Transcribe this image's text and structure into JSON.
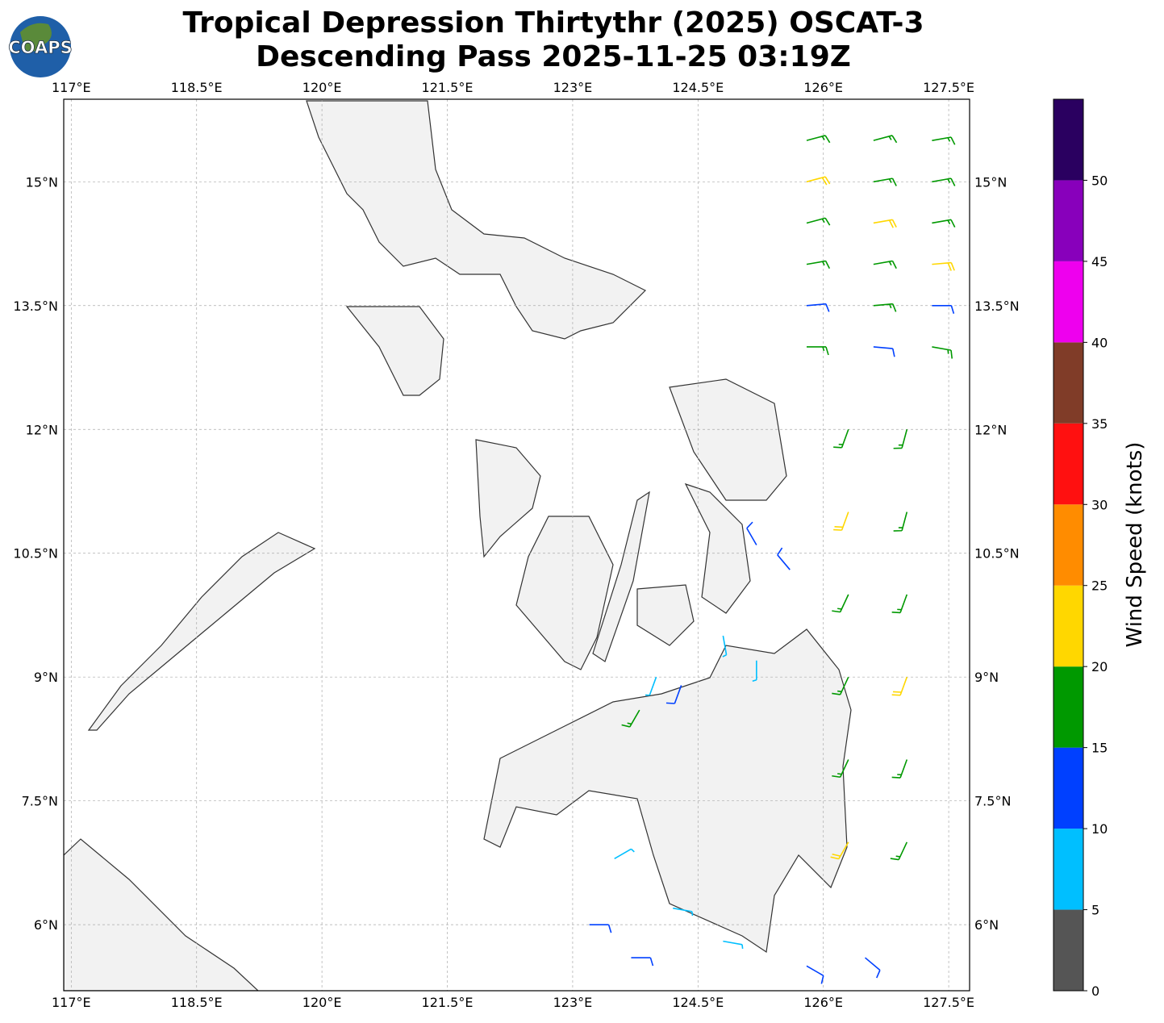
{
  "chart_data": {
    "type": "wind-barb-map",
    "title": "Tropical Depression Thirtythr (2025) OSCAT-3",
    "subtitle": "Descending Pass 2025-11-25 03:19Z",
    "logo_text": "COAPS",
    "xlim": [
      116.91,
      127.75
    ],
    "ylim": [
      5.2,
      16.0
    ],
    "xticks": [
      {
        "value": 117,
        "label": "117°E"
      },
      {
        "value": 118.5,
        "label": "118.5°E"
      },
      {
        "value": 120,
        "label": "120°E"
      },
      {
        "value": 121.5,
        "label": "121.5°E"
      },
      {
        "value": 123,
        "label": "123°E"
      },
      {
        "value": 124.5,
        "label": "124.5°E"
      },
      {
        "value": 126,
        "label": "126°E"
      },
      {
        "value": 127.5,
        "label": "127.5°E"
      }
    ],
    "yticks": [
      {
        "value": 6,
        "label": "6°N"
      },
      {
        "value": 7.5,
        "label": "7.5°N"
      },
      {
        "value": 9,
        "label": "9°N"
      },
      {
        "value": 10.5,
        "label": "10.5°N"
      },
      {
        "value": 12,
        "label": "12°N"
      },
      {
        "value": 13.5,
        "label": "13.5°N"
      },
      {
        "value": 15,
        "label": "15°N"
      }
    ],
    "grid": true,
    "colorbar": {
      "label": "Wind Speed (knots)",
      "bins": [
        0,
        5,
        10,
        15,
        20,
        25,
        30,
        35,
        40,
        45,
        50,
        55
      ],
      "colors": [
        "#555555",
        "#00bfff",
        "#0040ff",
        "#009900",
        "#ffd700",
        "#ff8c00",
        "#ff1010",
        "#803c28",
        "#ee00ee",
        "#8800bb",
        "#2a0060"
      ],
      "ticks": [
        0,
        5,
        10,
        15,
        20,
        25,
        30,
        35,
        40,
        45,
        50
      ]
    },
    "barbs": {
      "lon": [
        125.8,
        126.6,
        127.3,
        125.8,
        126.6,
        127.3,
        125.8,
        126.6,
        127.3,
        125.8,
        126.6,
        127.3,
        125.8,
        126.6,
        127.3,
        125.8,
        126.6,
        127.3,
        126.3,
        127.0,
        126.3,
        127.0,
        126.3,
        127.0,
        126.3,
        127.0,
        126.3,
        127.0,
        126.3,
        127.0,
        125.2,
        125.6,
        124.8,
        125.2,
        124.0,
        123.8,
        124.3,
        123.2,
        123.7,
        124.2,
        124.8,
        123.5,
        125.8,
        126.5
      ],
      "lat": [
        15.5,
        15.5,
        15.5,
        15,
        15,
        15,
        14.5,
        14.5,
        14.5,
        14,
        14,
        14,
        13.5,
        13.5,
        13.5,
        13,
        13,
        13,
        12,
        12,
        11,
        11,
        10,
        10,
        9,
        9,
        8,
        8,
        7,
        7,
        10.6,
        10.3,
        9.5,
        9.2,
        9.0,
        8.6,
        8.9,
        6.0,
        5.6,
        6.2,
        5.8,
        6.8,
        5.5,
        5.6
      ],
      "speed": [
        17,
        16,
        18,
        21,
        17,
        19,
        16,
        22,
        18,
        17,
        19,
        21,
        12,
        16,
        13,
        18,
        14,
        17,
        17,
        18,
        22,
        19,
        18,
        17,
        16,
        22,
        19,
        18,
        21,
        17,
        11,
        12,
        7,
        8,
        9,
        18,
        12,
        12,
        13,
        8,
        8,
        9,
        13,
        12
      ],
      "direction": [
        75,
        75,
        80,
        75,
        80,
        80,
        75,
        80,
        80,
        80,
        80,
        85,
        85,
        85,
        90,
        90,
        95,
        100,
        200,
        195,
        200,
        195,
        205,
        200,
        205,
        200,
        205,
        200,
        210,
        205,
        330,
        320,
        170,
        180,
        200,
        210,
        200,
        90,
        90,
        100,
        100,
        60,
        120,
        130
      ]
    }
  }
}
